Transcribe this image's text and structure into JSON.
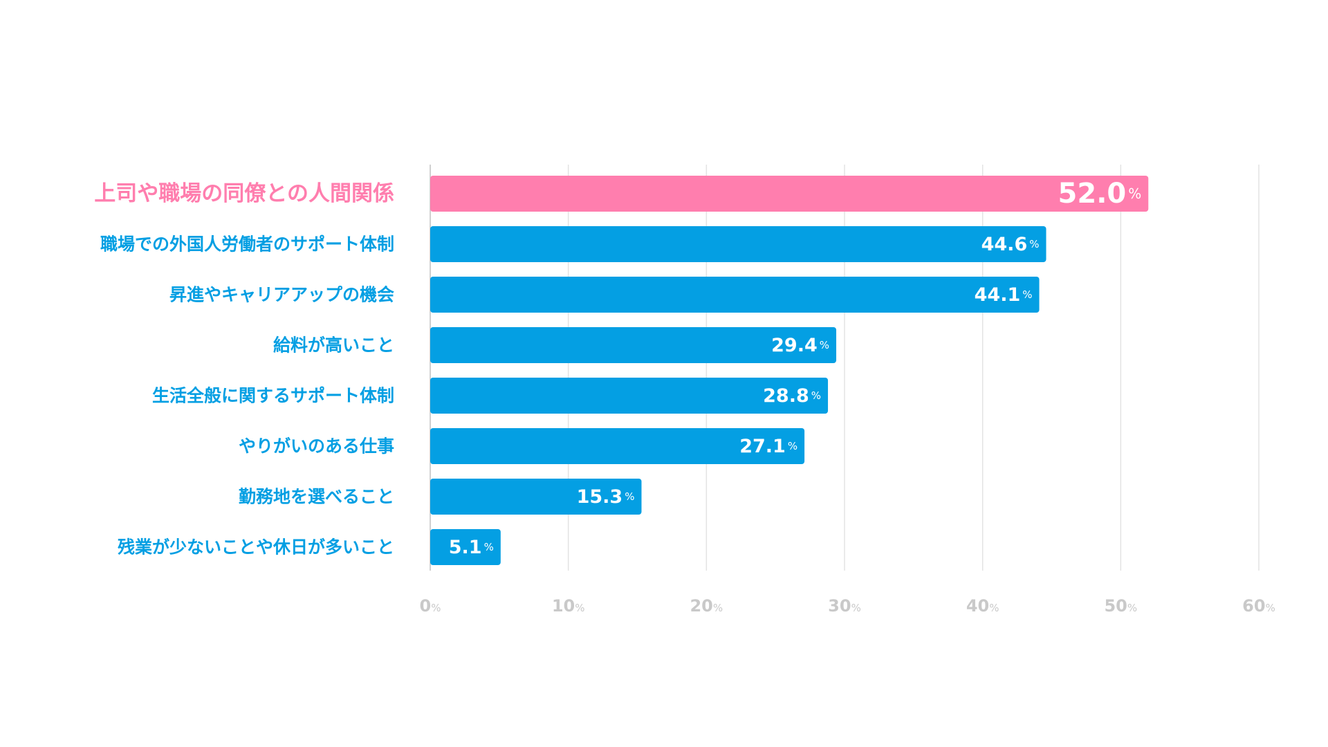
{
  "chart_data": {
    "type": "bar",
    "orientation": "horizontal",
    "categories": [
      "上司や職場の同僚との人間関係",
      "職場での外国人労働者のサポート体制",
      "昇進やキャリアアップの機会",
      "給料が高いこと",
      "生活全般に関するサポート体制",
      "やりがいのある仕事",
      "勤務地を選べること",
      "残業が少ないことや休日が多いこと"
    ],
    "values": [
      52.0,
      44.6,
      44.1,
      29.4,
      28.8,
      27.1,
      15.3,
      5.1
    ],
    "highlight_index": 0,
    "unit": "%",
    "xlim": [
      0,
      60
    ],
    "xticks": [
      0,
      10,
      20,
      30,
      40,
      50,
      60
    ],
    "grid": true,
    "colors": {
      "highlight": "#FF7EAE",
      "bar": "#049FE3",
      "grid": "#E3E3E3",
      "tick": "#C9C9C9",
      "axis": "#D0D0D0",
      "value_text": "#FFFFFF"
    }
  }
}
